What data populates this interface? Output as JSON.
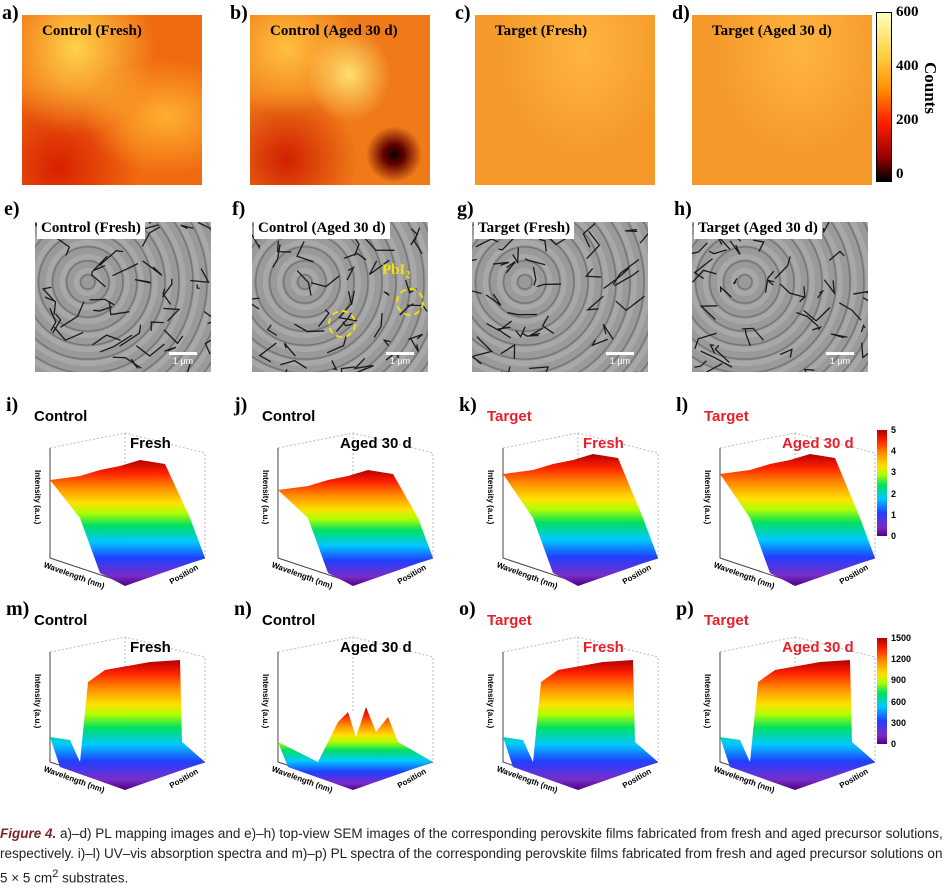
{
  "panels_pl_map": [
    {
      "letter": "a)",
      "title": "Control (Fresh)",
      "style": "warm-uneven"
    },
    {
      "letter": "b)",
      "title": "Control (Aged 30 d)",
      "style": "warm-dark-spot"
    },
    {
      "letter": "c)",
      "title": "Target (Fresh)",
      "style": "uniform-orange"
    },
    {
      "letter": "d)",
      "title": "Target (Aged 30 d)",
      "style": "uniform-orange"
    }
  ],
  "pl_colorbar": {
    "ticks": [
      "600",
      "400",
      "200",
      "0"
    ],
    "label": "Counts"
  },
  "panels_sem": [
    {
      "letter": "e)",
      "title": "Control (Fresh)",
      "scale": "1 μm"
    },
    {
      "letter": "f)",
      "title": "Control (Aged 30 d)",
      "scale": "1 μm",
      "annotation": "PbI",
      "annotation_sub": "2"
    },
    {
      "letter": "g)",
      "title": "Target (Fresh)",
      "scale": "1 μm"
    },
    {
      "letter": "h)",
      "title": "Target (Aged 30 d)",
      "scale": "1 μm"
    }
  ],
  "panels_uv": [
    {
      "letter": "i)",
      "sample": "Control",
      "condition": "Fresh",
      "sample_color": "#000000"
    },
    {
      "letter": "j)",
      "sample": "Control",
      "condition": "Aged 30 d",
      "sample_color": "#000000"
    },
    {
      "letter": "k)",
      "sample": "Target",
      "condition": "Fresh",
      "sample_color": "#e8202a"
    },
    {
      "letter": "l)",
      "sample": "Target",
      "condition": "Aged 30 d",
      "sample_color": "#e8202a"
    }
  ],
  "panels_pls": [
    {
      "letter": "m)",
      "sample": "Control",
      "condition": "Fresh",
      "sample_color": "#000000"
    },
    {
      "letter": "n)",
      "sample": "Control",
      "condition": "Aged 30 d",
      "sample_color": "#000000"
    },
    {
      "letter": "o)",
      "sample": "Target",
      "condition": "Fresh",
      "sample_color": "#e8202a"
    },
    {
      "letter": "p)",
      "sample": "Target",
      "condition": "Aged 30 d",
      "sample_color": "#e8202a"
    }
  ],
  "axes": {
    "z": "Intensity (a.u.)",
    "x": "Wavelength (nm)",
    "y": "Position"
  },
  "uv_colorbar": {
    "ticks": [
      "5",
      "4",
      "3",
      "2",
      "1",
      "0"
    ]
  },
  "pls_colorbar": {
    "ticks": [
      "1500",
      "1200",
      "900",
      "600",
      "300",
      "0"
    ]
  },
  "caption": {
    "label": "Figure 4.",
    "text": " a)–d) PL mapping images and e)–h) top-view SEM images of the corresponding perovskite films fabricated from fresh and aged precursor solutions, respectively. i)–l) UV–vis absorption spectra and m)–p) PL spectra of the corresponding perovskite films fabricated from fresh and aged precursor solutions on 5 × 5 cm",
    "sup": "2",
    "end": " substrates."
  }
}
